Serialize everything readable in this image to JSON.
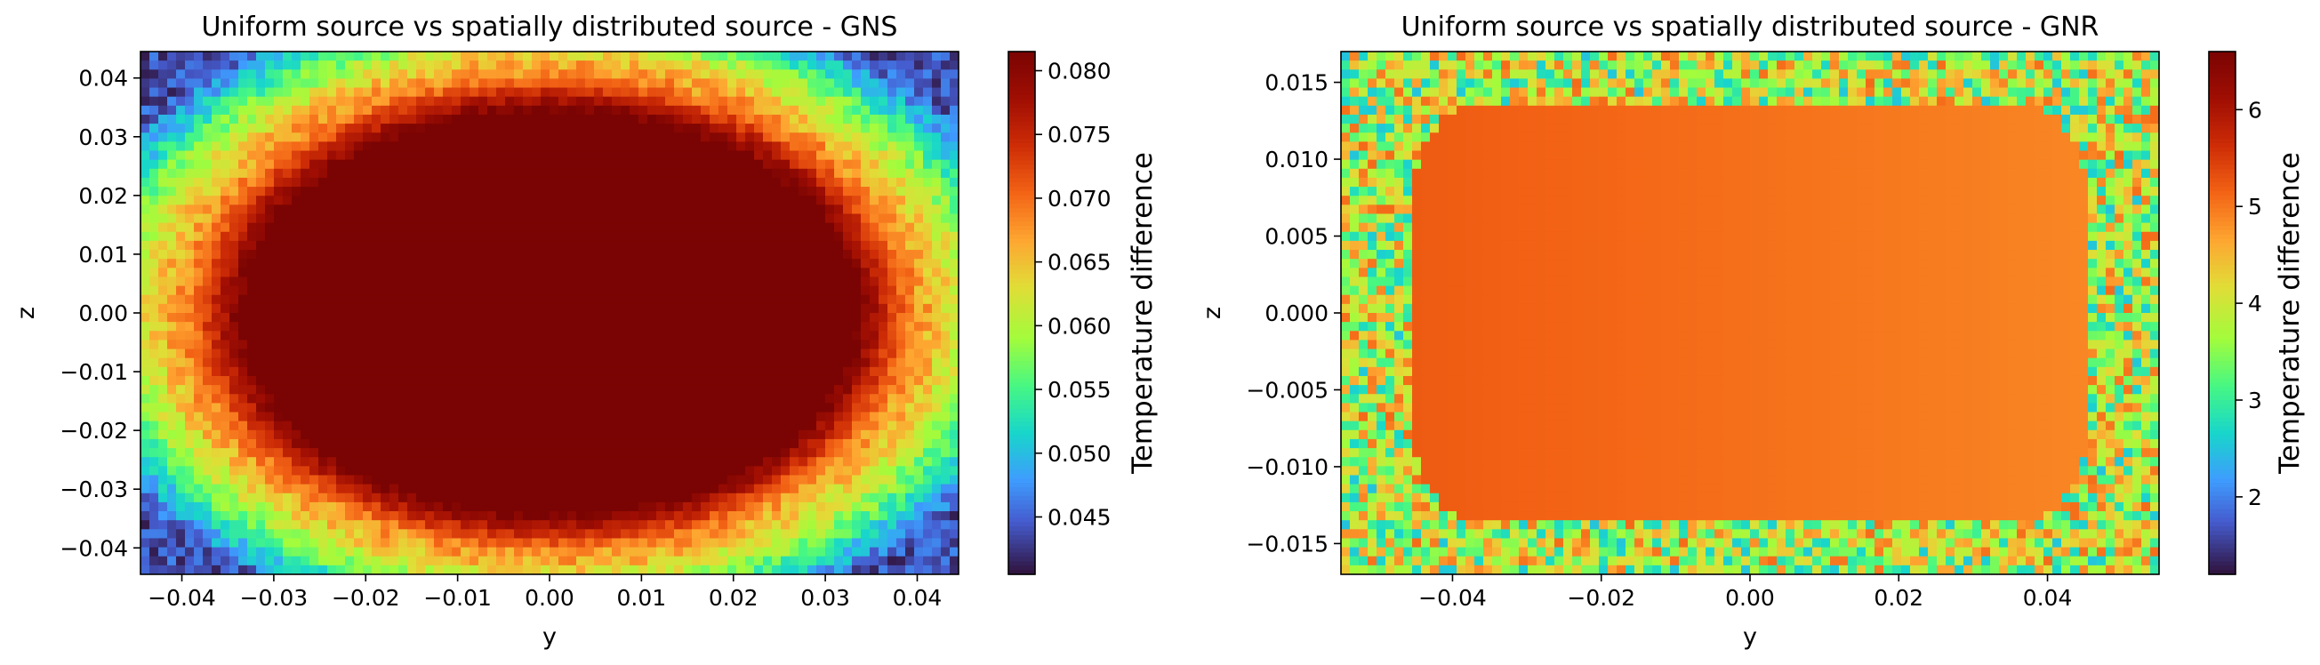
{
  "chart_data": [
    {
      "type": "heatmap",
      "title": "Uniform source vs spatially distributed source - GNS",
      "xlabel": "y",
      "ylabel": "z",
      "xlim": [
        -0.0445,
        0.0445
      ],
      "ylim": [
        -0.0445,
        0.0445
      ],
      "xticks": [
        -0.04,
        -0.03,
        -0.02,
        -0.01,
        0.0,
        0.01,
        0.02,
        0.03,
        0.04
      ],
      "xtick_labels": [
        "−0.04",
        "−0.03",
        "−0.02",
        "−0.01",
        "0.00",
        "0.01",
        "0.02",
        "0.03",
        "0.04"
      ],
      "yticks": [
        0.04,
        0.03,
        0.02,
        0.01,
        0.0,
        -0.01,
        -0.02,
        -0.03,
        -0.04
      ],
      "ytick_labels": [
        "0.04",
        "0.03",
        "0.02",
        "0.01",
        "0.00",
        "−0.01",
        "−0.02",
        "−0.03",
        "−0.04"
      ],
      "colormap": "turbo",
      "colorbar": {
        "label": "Temperature difference",
        "range": [
          0.0405,
          0.0815
        ],
        "ticks": [
          0.045,
          0.05,
          0.055,
          0.06,
          0.065,
          0.07,
          0.075,
          0.08
        ],
        "tick_labels": [
          "0.045",
          "0.050",
          "0.055",
          "0.060",
          "0.065",
          "0.070",
          "0.075",
          "0.080"
        ]
      },
      "field": {
        "shape": "ellipse",
        "center": [
          0.0,
          0.0
        ],
        "semi_axes": [
          0.0335,
          0.0345
        ],
        "inner_value": 0.0815,
        "band_value": 0.068,
        "outer_value": 0.044
      }
    },
    {
      "type": "heatmap",
      "title": "Uniform source vs spatially distributed source - GNR",
      "xlabel": "y",
      "ylabel": "z",
      "xlim": [
        -0.055,
        0.055
      ],
      "ylim": [
        -0.017,
        0.017
      ],
      "xticks": [
        -0.04,
        -0.02,
        0.0,
        0.02,
        0.04
      ],
      "xtick_labels": [
        "−0.04",
        "−0.02",
        "0.00",
        "0.02",
        "0.04"
      ],
      "yticks": [
        0.015,
        0.01,
        0.005,
        0.0,
        -0.005,
        -0.01,
        -0.015
      ],
      "ytick_labels": [
        "0.015",
        "0.010",
        "0.005",
        "0.000",
        "−0.005",
        "−0.010",
        "−0.015"
      ],
      "colormap": "turbo",
      "colorbar": {
        "label": "Temperature difference",
        "range": [
          1.2,
          6.6
        ],
        "ticks": [
          2,
          3,
          4,
          5,
          6
        ],
        "tick_labels": [
          "2",
          "3",
          "4",
          "5",
          "6"
        ]
      },
      "field": {
        "shape": "rounded_rectangle",
        "center": [
          0.0,
          0.0
        ],
        "half_extent": [
          0.046,
          0.0133
        ],
        "corner_radius": 0.008,
        "inner_value_left": 5.25,
        "inner_value_right": 4.85,
        "outer_value": 3.8
      }
    }
  ]
}
